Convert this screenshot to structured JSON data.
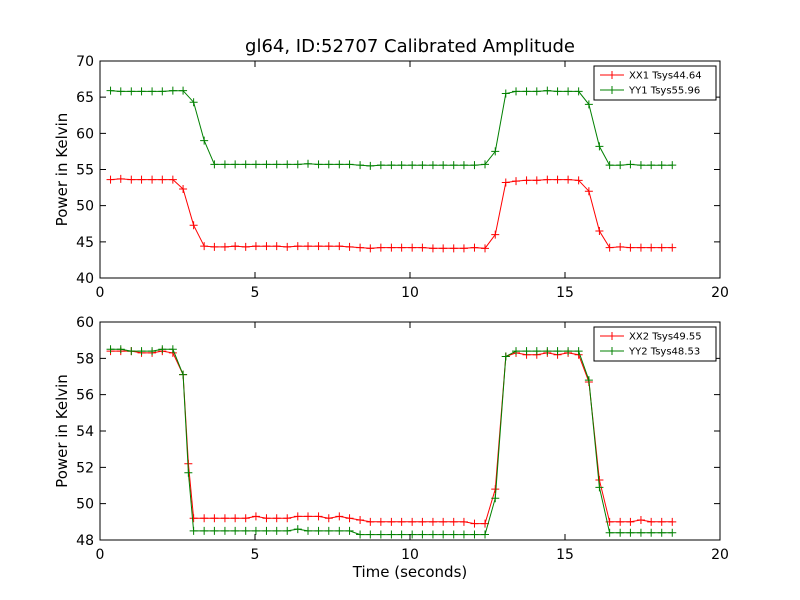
{
  "figure": {
    "title": "gl64, ID:52707 Calibrated Amplitude",
    "xlabel": "Time (seconds)"
  },
  "chart_data": [
    {
      "type": "line",
      "title": "gl64, ID:52707 Calibrated Amplitude",
      "xlabel": "",
      "ylabel": "Power in Kelvin",
      "xlim": [
        0,
        20
      ],
      "ylim": [
        40,
        70
      ],
      "xticks": [
        0,
        5,
        10,
        15,
        20
      ],
      "yticks": [
        40,
        45,
        50,
        55,
        60,
        65,
        70
      ],
      "legend_position": "top-right",
      "grid": false,
      "x": [
        0.34,
        0.67,
        1.01,
        1.34,
        1.68,
        2.01,
        2.35,
        2.68,
        3.02,
        3.36,
        3.69,
        4.03,
        4.36,
        4.7,
        5.03,
        5.37,
        5.7,
        6.04,
        6.38,
        6.71,
        7.05,
        7.38,
        7.72,
        8.05,
        8.39,
        8.72,
        9.06,
        9.4,
        9.73,
        10.07,
        10.4,
        10.74,
        11.07,
        11.41,
        11.74,
        12.08,
        12.42,
        12.75,
        13.09,
        13.42,
        13.76,
        14.09,
        14.43,
        14.76,
        15.1,
        15.44,
        15.77,
        16.11,
        16.44,
        16.78,
        17.11,
        17.45,
        17.78,
        18.12,
        18.46
      ],
      "series": [
        {
          "name": "XX1 Tsys44.64",
          "color": "#ff0000",
          "values": [
            53.6,
            53.7,
            53.6,
            53.6,
            53.6,
            53.6,
            53.6,
            52.3,
            47.3,
            44.4,
            44.3,
            44.3,
            44.4,
            44.3,
            44.4,
            44.4,
            44.4,
            44.3,
            44.4,
            44.4,
            44.4,
            44.4,
            44.4,
            44.3,
            44.2,
            44.1,
            44.2,
            44.2,
            44.2,
            44.2,
            44.2,
            44.1,
            44.1,
            44.1,
            44.1,
            44.2,
            44.1,
            46.0,
            53.2,
            53.4,
            53.5,
            53.5,
            53.6,
            53.6,
            53.6,
            53.5,
            52.0,
            46.5,
            44.2,
            44.3,
            44.2,
            44.2,
            44.2,
            44.2,
            44.2
          ]
        },
        {
          "name": "YY1 Tsys55.96",
          "color": "#008000",
          "values": [
            65.9,
            65.8,
            65.8,
            65.8,
            65.8,
            65.8,
            65.9,
            65.9,
            64.3,
            59.0,
            55.7,
            55.7,
            55.7,
            55.7,
            55.7,
            55.7,
            55.7,
            55.7,
            55.7,
            55.8,
            55.7,
            55.7,
            55.7,
            55.7,
            55.6,
            55.5,
            55.6,
            55.6,
            55.6,
            55.6,
            55.6,
            55.6,
            55.6,
            55.6,
            55.6,
            55.6,
            55.7,
            57.5,
            65.5,
            65.8,
            65.8,
            65.8,
            65.9,
            65.8,
            65.8,
            65.8,
            64.0,
            58.2,
            55.6,
            55.6,
            55.7,
            55.6,
            55.6,
            55.6,
            55.6
          ]
        }
      ]
    },
    {
      "type": "line",
      "title": "",
      "xlabel": "Time (seconds)",
      "ylabel": "Power in Kelvin",
      "xlim": [
        0,
        20
      ],
      "ylim": [
        48,
        60
      ],
      "xticks": [
        0,
        5,
        10,
        15,
        20
      ],
      "yticks": [
        48,
        50,
        52,
        54,
        56,
        58,
        60
      ],
      "legend_position": "top-right",
      "grid": false,
      "x": [
        0.34,
        0.67,
        1.01,
        1.34,
        1.68,
        2.01,
        2.35,
        2.68,
        2.85,
        3.02,
        3.36,
        3.69,
        4.03,
        4.36,
        4.7,
        5.03,
        5.37,
        5.7,
        6.04,
        6.38,
        6.71,
        7.05,
        7.38,
        7.72,
        8.05,
        8.39,
        8.72,
        9.06,
        9.4,
        9.73,
        10.07,
        10.4,
        10.74,
        11.07,
        11.41,
        11.74,
        12.08,
        12.42,
        12.75,
        13.09,
        13.42,
        13.76,
        14.09,
        14.43,
        14.76,
        15.1,
        15.44,
        15.77,
        16.11,
        16.44,
        16.78,
        17.11,
        17.45,
        17.78,
        18.12,
        18.46
      ],
      "series": [
        {
          "name": "XX2 Tsys49.55",
          "color": "#ff0000",
          "values": [
            58.4,
            58.4,
            58.4,
            58.3,
            58.3,
            58.4,
            58.3,
            57.1,
            52.2,
            49.2,
            49.2,
            49.2,
            49.2,
            49.2,
            49.2,
            49.3,
            49.2,
            49.2,
            49.2,
            49.3,
            49.3,
            49.3,
            49.2,
            49.3,
            49.2,
            49.1,
            49.0,
            49.0,
            49.0,
            49.0,
            49.0,
            49.0,
            49.0,
            49.0,
            49.0,
            49.0,
            48.9,
            48.9,
            50.8,
            58.1,
            58.3,
            58.2,
            58.2,
            58.3,
            58.2,
            58.3,
            58.2,
            56.7,
            51.3,
            49.0,
            49.0,
            49.0,
            49.1,
            49.0,
            49.0,
            49.0
          ]
        },
        {
          "name": "YY2 Tsys48.53",
          "color": "#008000",
          "values": [
            58.5,
            58.5,
            58.4,
            58.4,
            58.4,
            58.5,
            58.5,
            57.1,
            51.7,
            48.5,
            48.5,
            48.5,
            48.5,
            48.5,
            48.5,
            48.5,
            48.5,
            48.5,
            48.5,
            48.6,
            48.5,
            48.5,
            48.5,
            48.5,
            48.5,
            48.3,
            48.3,
            48.3,
            48.3,
            48.3,
            48.3,
            48.3,
            48.3,
            48.3,
            48.3,
            48.3,
            48.3,
            48.3,
            50.3,
            58.1,
            58.4,
            58.4,
            58.4,
            58.4,
            58.4,
            58.4,
            58.4,
            56.8,
            50.9,
            48.4,
            48.4,
            48.4,
            48.4,
            48.4,
            48.4,
            48.4
          ]
        }
      ]
    }
  ]
}
